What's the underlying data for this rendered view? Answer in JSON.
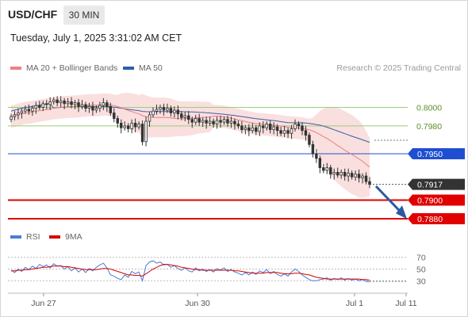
{
  "header": {
    "symbol": "USD/CHF",
    "timeframe": "30 MIN",
    "datetime": "Tuesday, July 1, 2025 3:31:02 AM CET",
    "credit": "Research © 2025 Trading Central"
  },
  "legend": {
    "ma20": "MA 20 + Bollinger Bands",
    "ma50": "MA 50",
    "ma20_color": "#f08080",
    "ma50_color": "#2e5fa8"
  },
  "rsi_legend": {
    "rsi": "RSI",
    "ma9": "9MA",
    "rsi_color": "#4a7bd8",
    "ma9_color": "#d40000"
  },
  "chart_data": [
    {
      "type": "candlestick",
      "title": "USD/CHF",
      "timeframe": "30 MIN",
      "ylim": [
        0.7868,
        0.8032
      ],
      "x_ticks": [
        "Jun 27",
        "Jun 30",
        "Jul 1",
        "Jul 11"
      ],
      "levels": [
        {
          "value": "0.8000",
          "kind": "resistance",
          "color": "#9acd78"
        },
        {
          "value": "0.7980",
          "kind": "resistance",
          "color": "#9acd78"
        },
        {
          "value": "0.7950",
          "kind": "pivot",
          "color": "#1f4fd1"
        },
        {
          "value": "0.7917",
          "kind": "last",
          "color": "#333333"
        },
        {
          "value": "0.7900",
          "kind": "support",
          "color": "#e00000"
        },
        {
          "value": "0.7880",
          "kind": "support",
          "color": "#e00000"
        }
      ],
      "close": [
        0.799,
        0.7992,
        0.7994,
        0.7996,
        0.7998,
        0.7996,
        0.7999,
        0.8002,
        0.8,
        0.8004,
        0.8003,
        0.8006,
        0.8008,
        0.8005,
        0.8007,
        0.8004,
        0.8006,
        0.8003,
        0.8005,
        0.8001,
        0.8003,
        0.7999,
        0.8001,
        0.7997,
        0.7999,
        0.8002,
        0.8005,
        0.8001,
        0.7994,
        0.7988,
        0.7983,
        0.7978,
        0.798,
        0.7977,
        0.7983,
        0.7979,
        0.7982,
        0.7963,
        0.7985,
        0.7992,
        0.7996,
        0.7998,
        0.8,
        0.7997,
        0.7999,
        0.7994,
        0.7997,
        0.7993,
        0.7989,
        0.7991,
        0.7987,
        0.7984,
        0.7988,
        0.7984,
        0.7986,
        0.7983,
        0.7985,
        0.7982,
        0.7986,
        0.7984,
        0.7987,
        0.7983,
        0.7985,
        0.7982,
        0.798,
        0.7976,
        0.7978,
        0.7975,
        0.7978,
        0.7974,
        0.798,
        0.7978,
        0.7982,
        0.7976,
        0.7979,
        0.7975,
        0.7972,
        0.7975,
        0.7972,
        0.7977,
        0.7982,
        0.798,
        0.7975,
        0.797,
        0.796,
        0.795,
        0.7945,
        0.7935,
        0.7932,
        0.7935,
        0.7928,
        0.793,
        0.7927,
        0.793,
        0.7926,
        0.7929,
        0.7925,
        0.7928,
        0.7924,
        0.7926,
        0.792,
        0.7917
      ]
    },
    {
      "type": "line",
      "title": "RSI",
      "ylim": [
        25,
        75
      ],
      "y_ticks": [
        "70",
        "50",
        "30"
      ],
      "series": [
        {
          "name": "RSI",
          "values": [
            48,
            44,
            50,
            46,
            53,
            49,
            55,
            51,
            58,
            54,
            57,
            52,
            59,
            55,
            56,
            50,
            54,
            47,
            52,
            45,
            50,
            44,
            51,
            47,
            53,
            57,
            60,
            52,
            40,
            38,
            34,
            32,
            40,
            36,
            46,
            42,
            45,
            30,
            56,
            62,
            64,
            60,
            62,
            57,
            58,
            53,
            56,
            51,
            48,
            52,
            47,
            45,
            52,
            47,
            50,
            46,
            49,
            45,
            51,
            48,
            52,
            46,
            49,
            45,
            43,
            40,
            44,
            40,
            45,
            41,
            47,
            44,
            49,
            42,
            46,
            41,
            38,
            42,
            38,
            45,
            50,
            46,
            40,
            36,
            32,
            30,
            30,
            32,
            33,
            35,
            31,
            34,
            32,
            35,
            31,
            34,
            31,
            33,
            30,
            32,
            29,
            28
          ]
        },
        {
          "name": "9MA",
          "values": [
            47,
            47,
            48,
            48,
            49,
            49,
            50,
            51,
            52,
            53,
            53,
            54,
            55,
            55,
            55,
            54,
            54,
            53,
            52,
            51,
            50,
            49,
            49,
            49,
            49,
            50,
            51,
            51,
            50,
            48,
            46,
            44,
            42,
            40,
            40,
            39,
            39,
            38,
            42,
            46,
            50,
            53,
            56,
            58,
            58,
            57,
            56,
            55,
            53,
            52,
            51,
            50,
            49,
            49,
            48,
            48,
            48,
            48,
            48,
            48,
            48,
            48,
            48,
            47,
            47,
            46,
            45,
            44,
            43,
            43,
            43,
            43,
            44,
            44,
            44,
            44,
            43,
            42,
            42,
            42,
            43,
            43,
            42,
            41,
            40,
            38,
            36,
            35,
            34,
            33,
            33,
            33,
            33,
            33,
            33,
            33,
            33,
            33,
            33,
            32,
            32,
            31
          ]
        }
      ]
    }
  ]
}
